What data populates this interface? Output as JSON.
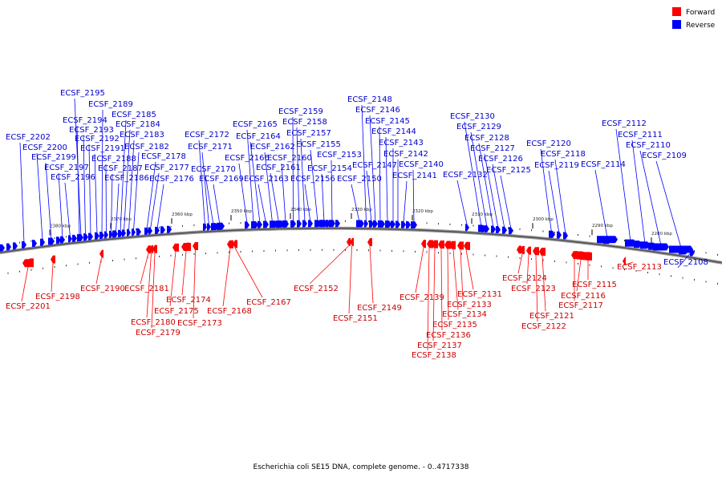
{
  "caption": "Escherichia coli SE15 DNA, complete genome. - 0..4717338",
  "legend": [
    {
      "label": "Forward",
      "color": "#ff0000"
    },
    {
      "label": "Reverse",
      "color": "#0000ff"
    }
  ],
  "colors": {
    "forward": "#ff0000",
    "reverse": "#0000ff",
    "forward_text": "#cc0000",
    "reverse_text": "#0000cc",
    "backbone": "#707070"
  },
  "scale_labels": [
    "2380 kbp",
    "2370 kbp",
    "2360 kbp",
    "2350 kbp",
    "2340 kbp",
    "2330 kbp",
    "2320 kbp",
    "2310 kbp",
    "2300 kbp",
    "2290 kbp",
    "2280 kbp"
  ],
  "reverse_genes": [
    "ECSF_2202",
    "ECSF_2200",
    "ECSF_2199",
    "ECSF_2197",
    "ECSF_2196",
    "ECSF_2195",
    "ECSF_2194",
    "ECSF_2193",
    "ECSF_2192",
    "ECSF_2191",
    "ECSF_2189",
    "ECSF_2188",
    "ECSF_2187",
    "ECSF_2186",
    "ECSF_2185",
    "ECSF_2184",
    "ECSF_2183",
    "ECSF_2182",
    "ECSF_2178",
    "ECSF_2177",
    "ECSF_2176",
    "ECSF_2172",
    "ECSF_2171",
    "ECSF_2170",
    "ECSF_2169",
    "ECSF_2166",
    "ECSF_2165",
    "ECSF_2164",
    "ECSF_2163",
    "ECSF_2162",
    "ECSF_2161",
    "ECSF_2160",
    "ECSF_2159",
    "ECSF_2158",
    "ECSF_2157",
    "ECSF_2156",
    "ECSF_2155",
    "ECSF_2154",
    "ECSF_2153",
    "ECSF_2150",
    "ECSF_2148",
    "ECSF_2147",
    "ECSF_2146",
    "ECSF_2145",
    "ECSF_2144",
    "ECSF_2143",
    "ECSF_2142",
    "ECSF_2141",
    "ECSF_2140",
    "ECSF_2132",
    "ECSF_2130",
    "ECSF_2129",
    "ECSF_2128",
    "ECSF_2127",
    "ECSF_2126",
    "ECSF_2125",
    "ECSF_2120",
    "ECSF_2119",
    "ECSF_2118",
    "ECSF_2114",
    "ECSF_2112",
    "ECSF_2111",
    "ECSF_2110",
    "ECSF_2109",
    "ECSF_2108"
  ],
  "forward_genes": [
    "ECSF_2201",
    "ECSF_2198",
    "ECSF_2190",
    "ECSF_2181",
    "ECSF_2180",
    "ECSF_2179",
    "ECSF_2175",
    "ECSF_2174",
    "ECSF_2173",
    "ECSF_2168",
    "ECSF_2167",
    "ECSF_2152",
    "ECSF_2151",
    "ECSF_2149",
    "ECSF_2139",
    "ECSF_2138",
    "ECSF_2137",
    "ECSF_2136",
    "ECSF_2135",
    "ECSF_2134",
    "ECSF_2133",
    "ECSF_2131",
    "ECSF_2124",
    "ECSF_2123",
    "ECSF_2122",
    "ECSF_2121",
    "ECSF_2117",
    "ECSF_2116",
    "ECSF_2115",
    "ECSF_2113"
  ]
}
